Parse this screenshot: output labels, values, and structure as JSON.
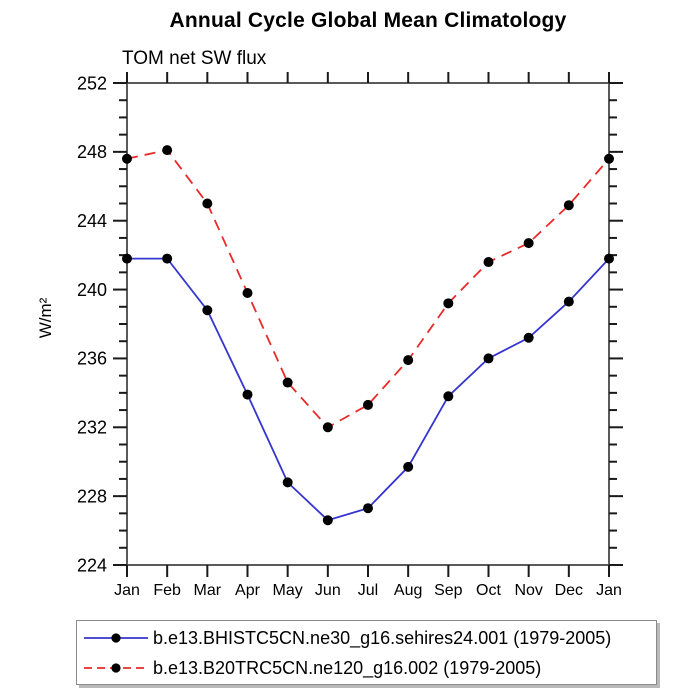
{
  "chart_data": {
    "type": "line",
    "title": "Annual Cycle Global Mean Climatology",
    "subtitle": "TOM net SW flux",
    "ylabel": "W/m²",
    "categories": [
      "Jan",
      "Feb",
      "Mar",
      "Apr",
      "May",
      "Jun",
      "Jul",
      "Aug",
      "Sep",
      "Oct",
      "Nov",
      "Dec",
      "Jan"
    ],
    "ylim": [
      224,
      252
    ],
    "ytick_major": 4,
    "ytick_minor": 1,
    "grid": false,
    "legend_position": "bottom",
    "marker_color": "#000000",
    "axis_color": "#5a5a5a",
    "tick_color": "#1a1a1a",
    "series": [
      {
        "name": "b.e13.BHISTC5CN.ne30_g16.sehires24.001 (1979-2005)",
        "color": "#3535cf",
        "line_style": "solid",
        "marker": "circle",
        "values": [
          241.8,
          241.8,
          238.8,
          233.9,
          228.8,
          226.6,
          227.3,
          229.7,
          233.8,
          236.0,
          237.2,
          239.3,
          241.8
        ]
      },
      {
        "name": "b.e13.B20TRC5CN.ne120_g16.002 (1979-2005)",
        "color": "#ea2a2a",
        "line_style": "dashed",
        "marker": "circle",
        "values": [
          247.6,
          248.1,
          245.0,
          239.8,
          234.6,
          232.0,
          233.3,
          235.9,
          239.2,
          241.6,
          242.7,
          244.9,
          247.6
        ]
      }
    ]
  }
}
